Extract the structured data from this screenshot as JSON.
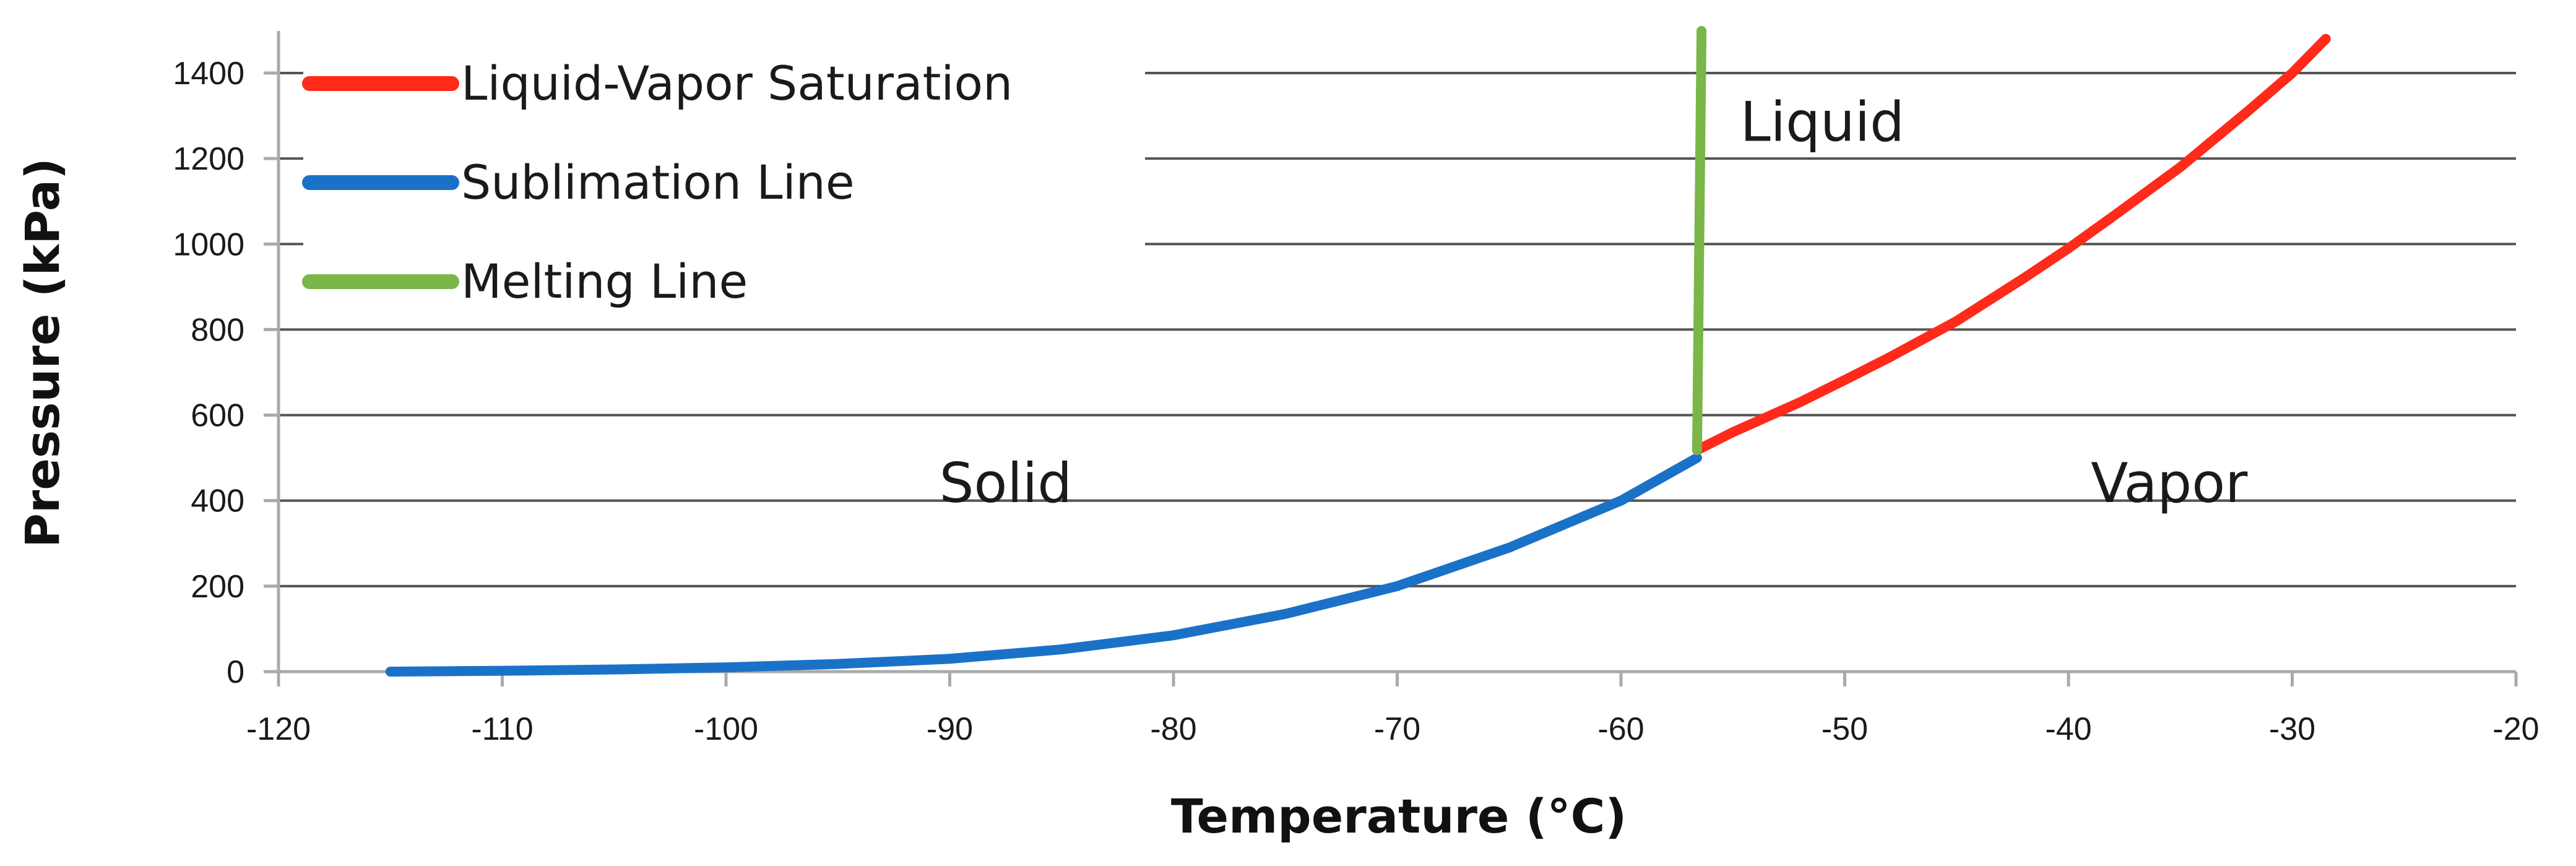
{
  "chart_data": {
    "type": "line",
    "title": "",
    "xlabel": "Temperature (°C)",
    "ylabel": "Pressure (kPa)",
    "xlim": [
      -120,
      -20
    ],
    "ylim": [
      0,
      1400
    ],
    "x_ticks": [
      -120,
      -110,
      -100,
      -90,
      -80,
      -70,
      -60,
      -50,
      -40,
      -30,
      -20
    ],
    "y_ticks": [
      0,
      200,
      400,
      600,
      800,
      1000,
      1200,
      1400
    ],
    "grid": "horizontal",
    "legend": "top-left",
    "series": [
      {
        "name": "Liquid-Vapor Saturation",
        "color": "#ff2a1a",
        "x": [
          -56.6,
          -55,
          -52,
          -50,
          -48,
          -45,
          -42,
          -40,
          -38,
          -35,
          -32,
          -30,
          -28.5
        ],
        "y": [
          518,
          560,
          630,
          682,
          735,
          820,
          920,
          990,
          1065,
          1180,
          1310,
          1400,
          1480
        ]
      },
      {
        "name": "Sublimation Line",
        "color": "#1a72c8",
        "x": [
          -115,
          -110,
          -105,
          -100,
          -95,
          -90,
          -85,
          -80,
          -75,
          -70,
          -65,
          -60,
          -56.6
        ],
        "y": [
          0,
          2,
          5,
          10,
          18,
          30,
          52,
          85,
          135,
          200,
          290,
          400,
          500
        ]
      },
      {
        "name": "Melting Line",
        "color": "#7ab648",
        "x": [
          -56.6,
          -56.4
        ],
        "y": [
          518,
          1500
        ]
      }
    ],
    "annotations": [
      {
        "text": "Solid",
        "x": -87.5,
        "y": 440
      },
      {
        "text": "Liquid",
        "x": -51,
        "y": 1285
      },
      {
        "text": "Vapor",
        "x": -35.5,
        "y": 440
      }
    ]
  }
}
